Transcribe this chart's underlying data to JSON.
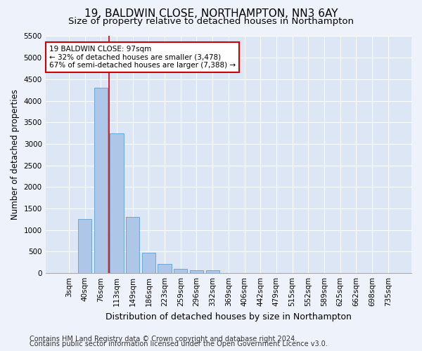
{
  "title_line1": "19, BALDWIN CLOSE, NORTHAMPTON, NN3 6AY",
  "title_line2": "Size of property relative to detached houses in Northampton",
  "xlabel": "Distribution of detached houses by size in Northampton",
  "ylabel": "Number of detached properties",
  "categories": [
    "3sqm",
    "40sqm",
    "76sqm",
    "113sqm",
    "149sqm",
    "186sqm",
    "223sqm",
    "259sqm",
    "296sqm",
    "332sqm",
    "369sqm",
    "406sqm",
    "442sqm",
    "479sqm",
    "515sqm",
    "552sqm",
    "589sqm",
    "625sqm",
    "662sqm",
    "698sqm",
    "735sqm"
  ],
  "values": [
    0,
    1250,
    4300,
    3250,
    1300,
    480,
    220,
    100,
    70,
    60,
    0,
    0,
    0,
    0,
    0,
    0,
    0,
    0,
    0,
    0,
    0
  ],
  "bar_color": "#aec6e8",
  "bar_edge_color": "#5a9fd4",
  "redline_x": 2.5,
  "annotation_text": "19 BALDWIN CLOSE: 97sqm\n← 32% of detached houses are smaller (3,478)\n67% of semi-detached houses are larger (7,388) →",
  "annotation_box_color": "#ffffff",
  "annotation_box_edge": "#cc0000",
  "ylim": [
    0,
    5500
  ],
  "yticks": [
    0,
    500,
    1000,
    1500,
    2000,
    2500,
    3000,
    3500,
    4000,
    4500,
    5000,
    5500
  ],
  "footer_line1": "Contains HM Land Registry data © Crown copyright and database right 2024.",
  "footer_line2": "Contains public sector information licensed under the Open Government Licence v3.0.",
  "bg_color": "#eef2fa",
  "plot_bg_color": "#dde6f5",
  "grid_color": "#ffffff",
  "redline_color": "#cc0000",
  "title1_fontsize": 11,
  "title2_fontsize": 9.5,
  "xlabel_fontsize": 9,
  "ylabel_fontsize": 8.5,
  "tick_fontsize": 7.5,
  "footer_fontsize": 7
}
